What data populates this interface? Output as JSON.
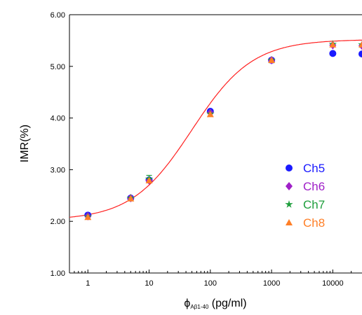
{
  "chart_data": {
    "type": "scatter",
    "title": "",
    "xlabel": {
      "symbol": "ϕ",
      "subscript": "Aβ1-40",
      "text": " (pg/ml)"
    },
    "ylabel": "IMR(%)",
    "x_scale": "log",
    "xlim": [
      0.5,
      30000
    ],
    "ylim": [
      1.0,
      6.0
    ],
    "x_ticks": [
      1,
      10,
      100,
      1000,
      10000
    ],
    "x_tick_labels": [
      "1",
      "10",
      "100",
      "1000",
      "10000"
    ],
    "y_ticks": [
      1,
      2,
      3,
      4,
      5,
      6
    ],
    "y_tick_labels": [
      "1.00",
      "2.00",
      "3.00",
      "4.00",
      "5.00",
      "6.00"
    ],
    "grid": false,
    "legend_position": "right",
    "x": [
      1,
      5,
      10,
      100,
      1000,
      10000,
      30000
    ],
    "series": [
      {
        "name": "Ch5",
        "marker": "circle",
        "color": "#1a1aff",
        "y": [
          2.12,
          2.45,
          2.8,
          4.13,
          5.12,
          5.25,
          5.24
        ]
      },
      {
        "name": "Ch6",
        "marker": "diamond",
        "color": "#a020c8",
        "y": [
          2.1,
          2.45,
          2.79,
          4.1,
          5.12,
          5.41,
          5.4
        ]
      },
      {
        "name": "Ch7",
        "marker": "star",
        "color": "#1e9e3c",
        "y": [
          2.09,
          2.45,
          2.82,
          4.08,
          5.12,
          5.43,
          5.42
        ]
      },
      {
        "name": "Ch8",
        "marker": "triangle",
        "color": "#ff7f27",
        "y": [
          2.08,
          2.44,
          2.79,
          4.07,
          5.12,
          5.42,
          5.42
        ]
      }
    ],
    "error_bars": {
      "series": "Ch7",
      "x": 10,
      "plus_minus": 0.07
    },
    "fit_curve": {
      "color": "#ff2020",
      "model": "four-parameter logistic",
      "A": 2.02,
      "B": 5.52,
      "x0": 50,
      "p": 0.88
    }
  }
}
